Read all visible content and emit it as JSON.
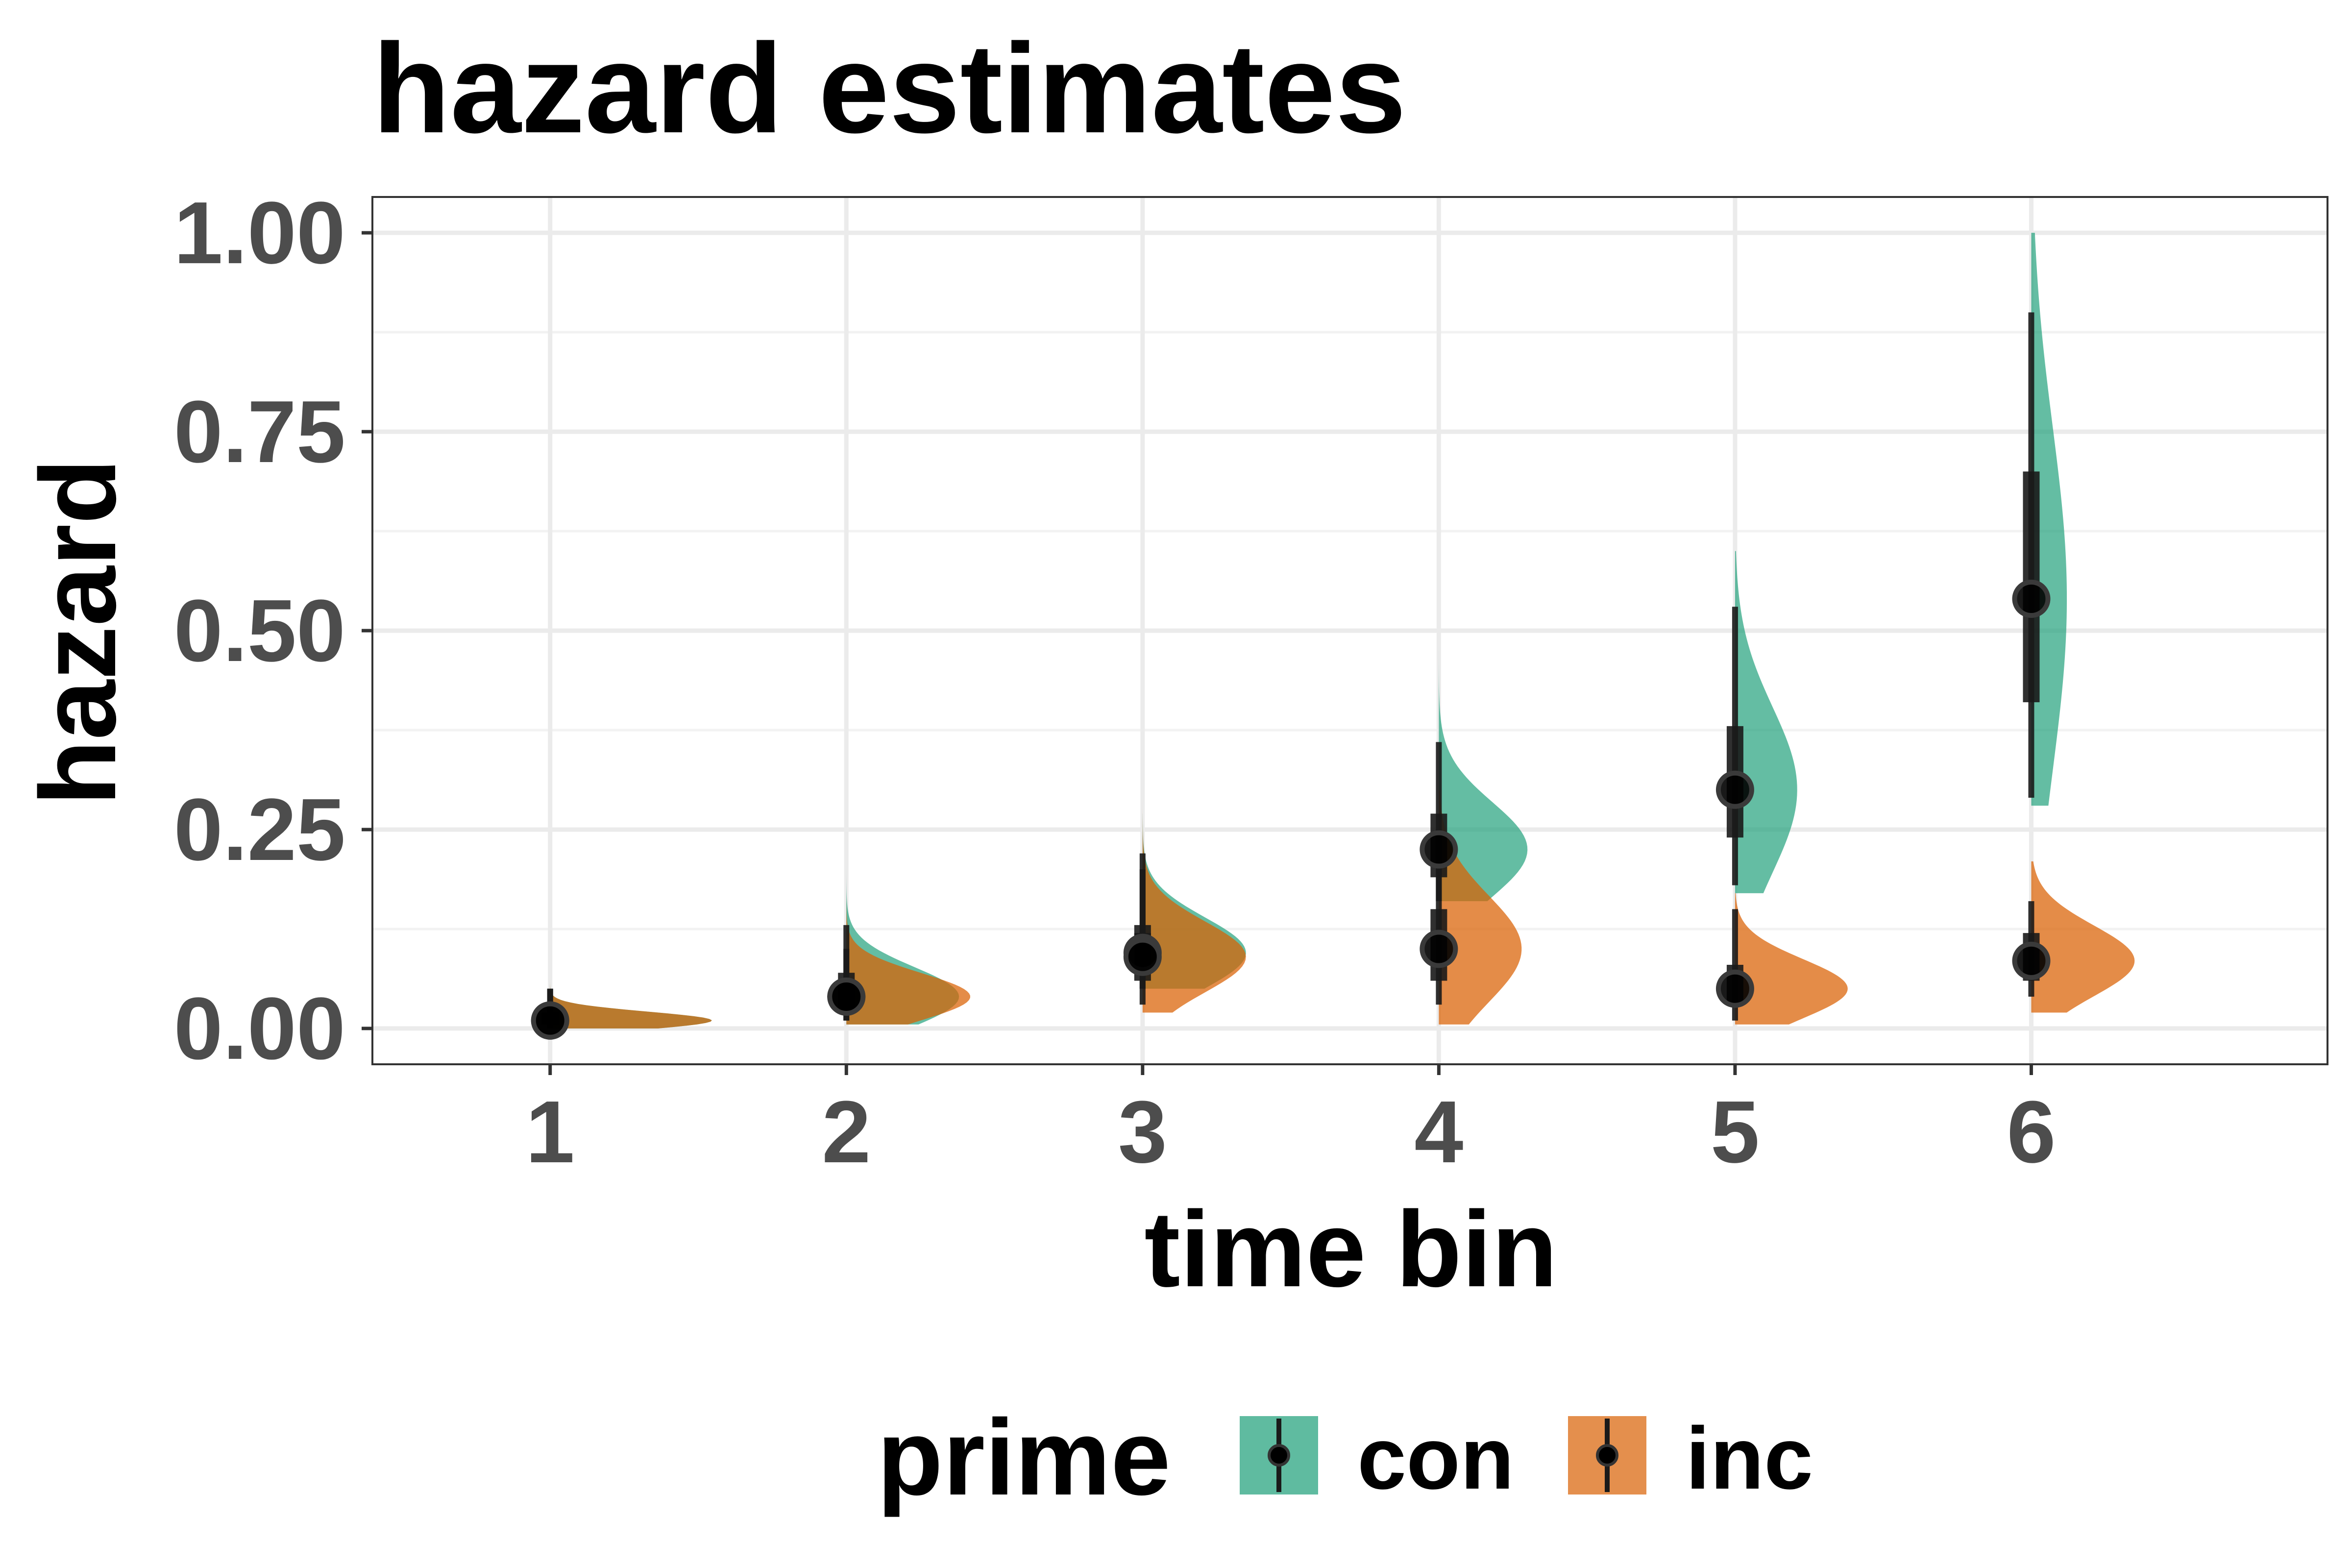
{
  "chart_data": {
    "type": "scatter",
    "subtype": "half-violin with point and interval",
    "title": "hazard estimates",
    "xlabel": "time bin",
    "ylabel": "hazard",
    "categories": [
      "1",
      "2",
      "3",
      "4",
      "5",
      "6"
    ],
    "y_ticks": [
      "0.00",
      "0.25",
      "0.50",
      "0.75",
      "1.00"
    ],
    "ylim": [
      0,
      1
    ],
    "xlim": [
      0.4,
      7.0
    ],
    "grid": true,
    "legend": {
      "title": "prime",
      "placement": "bottom",
      "entries": [
        {
          "label": "con",
          "color": "#1b9e77"
        },
        {
          "label": "inc",
          "color": "#d95f02"
        }
      ]
    },
    "series": [
      {
        "name": "con",
        "color": "#1b9e77",
        "points": [
          {
            "x": 1,
            "median": 0.01,
            "inner": [
              0.005,
              0.02
            ],
            "outer": [
              0.0,
              0.05
            ],
            "violin_max": 0.12,
            "violin_min": 0.0
          },
          {
            "x": 2,
            "median": 0.04,
            "inner": [
              0.02,
              0.07
            ],
            "outer": [
              0.01,
              0.13
            ],
            "violin_max": 0.23,
            "violin_min": 0.005
          },
          {
            "x": 3,
            "median": 0.095,
            "inner": [
              0.07,
              0.13
            ],
            "outer": [
              0.05,
              0.22
            ],
            "violin_max": 0.27,
            "violin_min": 0.05
          },
          {
            "x": 4,
            "median": 0.225,
            "inner": [
              0.19,
              0.27
            ],
            "outer": [
              0.16,
              0.36
            ],
            "violin_max": 0.48,
            "violin_min": 0.16
          },
          {
            "x": 5,
            "median": 0.3,
            "inner": [
              0.24,
              0.38
            ],
            "outer": [
              0.18,
              0.53
            ],
            "violin_max": 0.6,
            "violin_min": 0.17
          },
          {
            "x": 6,
            "median": 0.54,
            "inner": [
              0.41,
              0.7
            ],
            "outer": [
              0.29,
              0.9
            ],
            "violin_max": 1.0,
            "violin_min": 0.28
          }
        ]
      },
      {
        "name": "inc",
        "color": "#d95f02",
        "points": [
          {
            "x": 1,
            "median": 0.01,
            "inner": [
              0.005,
              0.02
            ],
            "outer": [
              0.0,
              0.05
            ],
            "violin_max": 0.12,
            "violin_min": 0.0
          },
          {
            "x": 2,
            "median": 0.04,
            "inner": [
              0.02,
              0.06
            ],
            "outer": [
              0.01,
              0.1
            ],
            "violin_max": 0.2,
            "violin_min": 0.005
          },
          {
            "x": 3,
            "median": 0.09,
            "inner": [
              0.06,
              0.12
            ],
            "outer": [
              0.03,
              0.2
            ],
            "violin_max": 0.31,
            "violin_min": 0.02
          },
          {
            "x": 4,
            "median": 0.1,
            "inner": [
              0.06,
              0.15
            ],
            "outer": [
              0.03,
              0.25
            ],
            "violin_max": 0.3,
            "violin_min": 0.005
          },
          {
            "x": 5,
            "median": 0.05,
            "inner": [
              0.03,
              0.08
            ],
            "outer": [
              0.01,
              0.15
            ],
            "violin_max": 0.17,
            "violin_min": 0.005
          },
          {
            "x": 6,
            "median": 0.085,
            "inner": [
              0.06,
              0.12
            ],
            "outer": [
              0.04,
              0.16
            ],
            "violin_max": 0.21,
            "violin_min": 0.02
          }
        ]
      }
    ]
  }
}
